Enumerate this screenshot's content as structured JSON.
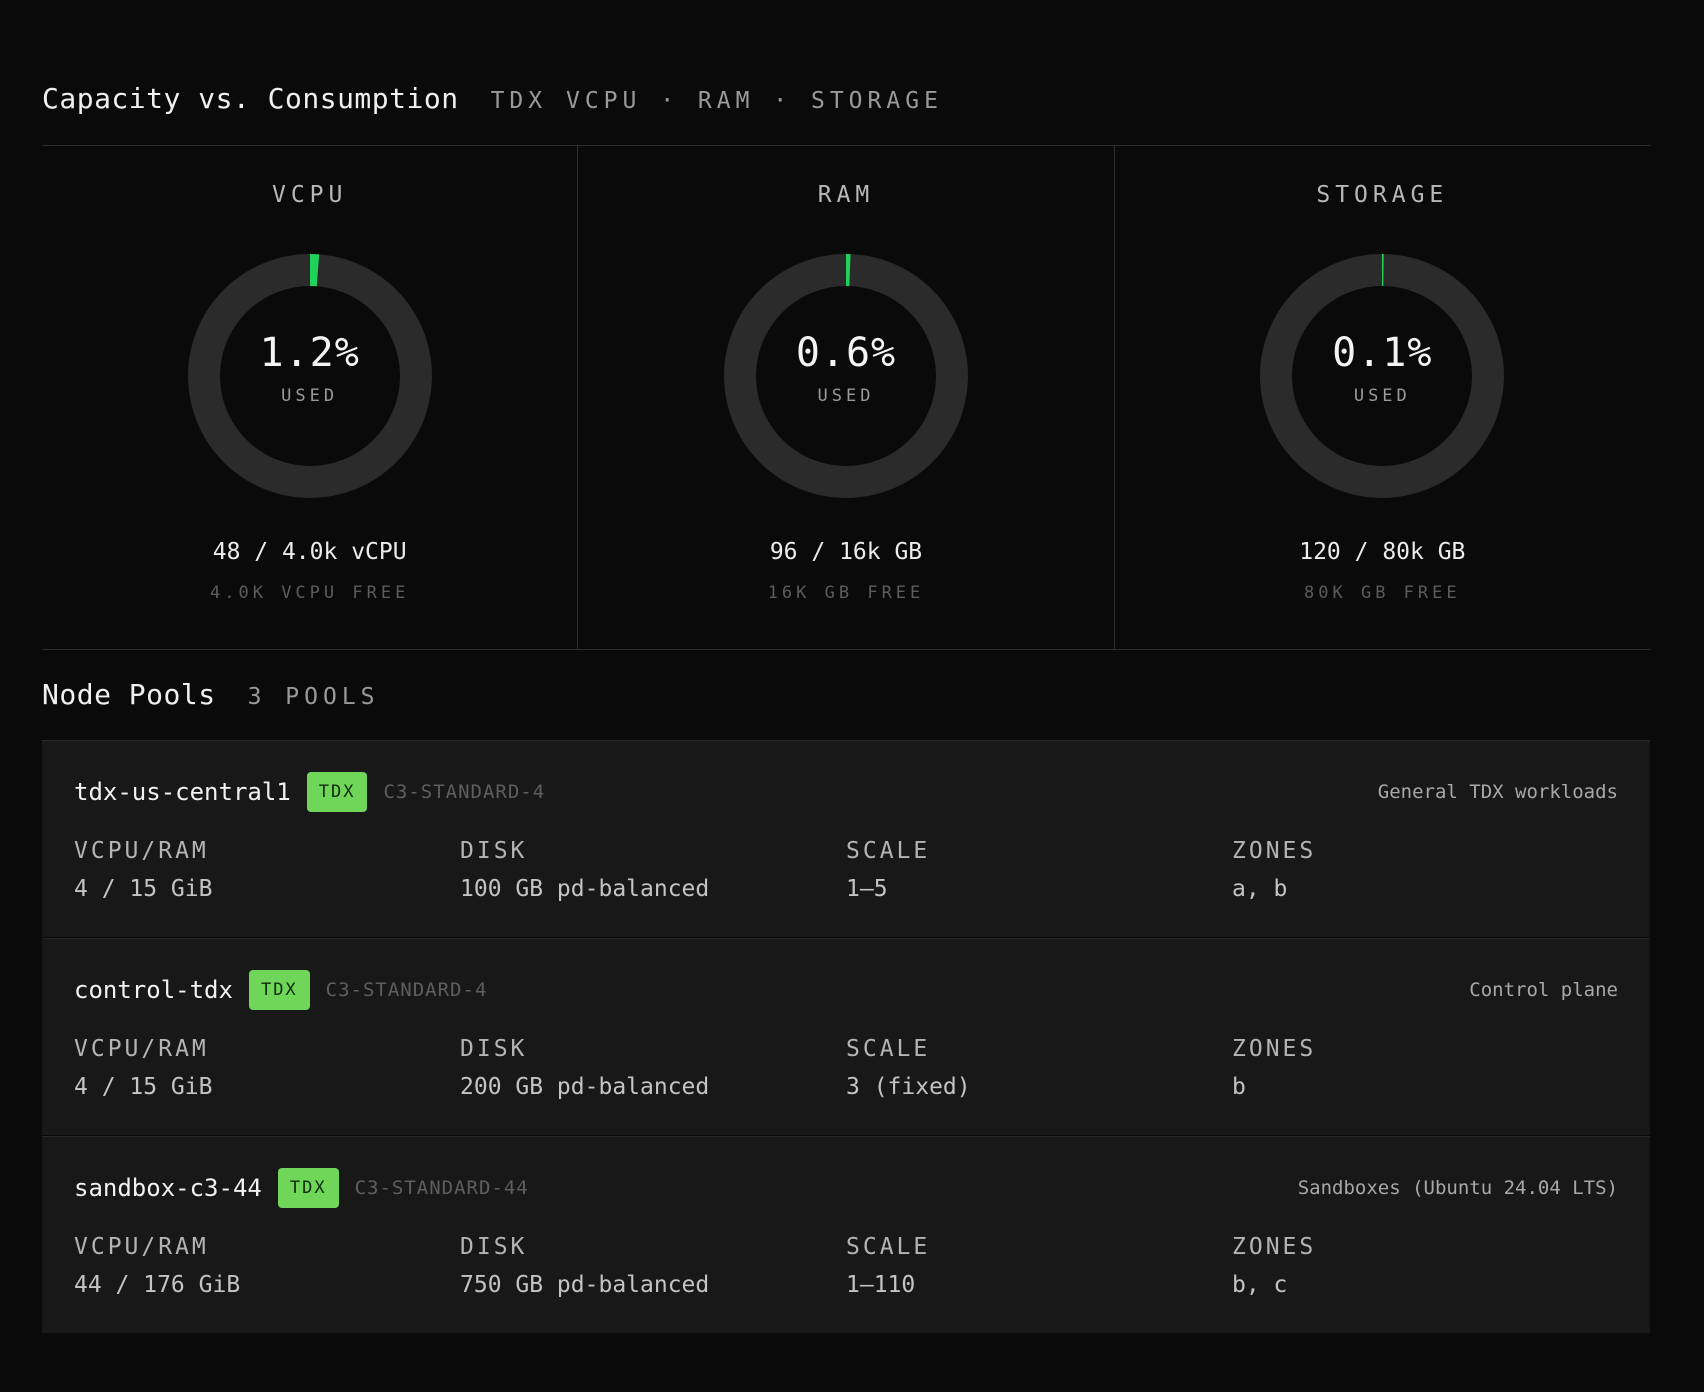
{
  "capacity": {
    "title": "Capacity vs. Consumption",
    "subtitle": "TDX VCPU · RAM · STORAGE",
    "accent_color": "#1fd25a",
    "track_color": "#2b2b2b",
    "gauges": [
      {
        "label": "VCPU",
        "pct_text": "1.2%",
        "used_fraction": 0.012,
        "used_label": "USED",
        "amount": "48 / 4.0k vCPU",
        "free": "4.0K VCPU FREE"
      },
      {
        "label": "RAM",
        "pct_text": "0.6%",
        "used_fraction": 0.006,
        "used_label": "USED",
        "amount": "96 / 16k GB",
        "free": "16K GB FREE"
      },
      {
        "label": "STORAGE",
        "pct_text": "0.1%",
        "used_fraction": 0.0015,
        "used_label": "USED",
        "amount": "120 / 80k GB",
        "free": "80K GB FREE"
      }
    ]
  },
  "node_pools": {
    "title": "Node Pools",
    "count": "3 POOLS",
    "column_labels": [
      "VCPU/RAM",
      "DISK",
      "SCALE",
      "ZONES"
    ],
    "pools": [
      {
        "name": "tdx-us-central1",
        "badge": "TDX",
        "machine": "C3-STANDARD-4",
        "description": "General TDX workloads",
        "vcpu_ram": "4 / 15 GiB",
        "disk": "100 GB pd-balanced",
        "scale": "1–5",
        "zones": "a, b"
      },
      {
        "name": "control-tdx",
        "badge": "TDX",
        "machine": "C3-STANDARD-4",
        "description": "Control plane",
        "vcpu_ram": "4 / 15 GiB",
        "disk": "200 GB pd-balanced",
        "scale": "3 (fixed)",
        "zones": "b"
      },
      {
        "name": "sandbox-c3-44",
        "badge": "TDX",
        "machine": "C3-STANDARD-44",
        "description": "Sandboxes (Ubuntu 24.04 LTS)",
        "vcpu_ram": "44 / 176 GiB",
        "disk": "750 GB pd-balanced",
        "scale": "1–110",
        "zones": "b, c"
      }
    ]
  }
}
